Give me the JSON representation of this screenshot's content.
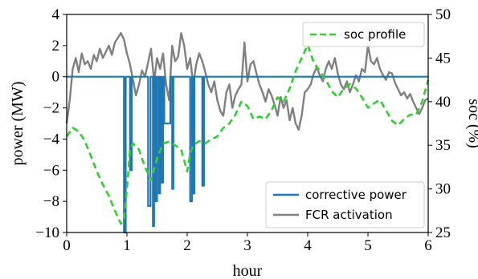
{
  "chart_data": {
    "type": "line",
    "xlabel": "hour",
    "ylabel": "power (MW)",
    "y2label": "soc (%)",
    "xlim": [
      0,
      6
    ],
    "ylim": [
      -10,
      4
    ],
    "y2lim": [
      25,
      50
    ],
    "xticks": [
      "0",
      "1",
      "2",
      "3",
      "4",
      "5",
      "6"
    ],
    "yticks": [
      "−10",
      "−8",
      "−6",
      "−4",
      "−2",
      "0",
      "2",
      "4"
    ],
    "y2ticks": [
      "25",
      "30",
      "35",
      "40",
      "45",
      "50"
    ],
    "grid": false,
    "legends": [
      {
        "placement": "lower-right",
        "entries": [
          "corrective power",
          "FCR activation"
        ]
      },
      {
        "placement": "upper-right",
        "entries": [
          "soc profile"
        ]
      }
    ],
    "colors": {
      "corrective": "#1f77b4",
      "fcr": "#808080",
      "soc": "#32cd32"
    },
    "series": [
      {
        "name": "FCR activation",
        "axis": "left",
        "x": [
          0.0,
          0.05,
          0.1,
          0.15,
          0.2,
          0.25,
          0.3,
          0.35,
          0.4,
          0.45,
          0.5,
          0.55,
          0.6,
          0.65,
          0.7,
          0.75,
          0.8,
          0.85,
          0.9,
          0.95,
          1.0,
          1.05,
          1.1,
          1.15,
          1.2,
          1.25,
          1.3,
          1.35,
          1.4,
          1.45,
          1.5,
          1.55,
          1.6,
          1.65,
          1.7,
          1.75,
          1.8,
          1.85,
          1.9,
          1.95,
          2.0,
          2.05,
          2.1,
          2.15,
          2.2,
          2.25,
          2.3,
          2.35,
          2.4,
          2.45,
          2.5,
          2.55,
          2.6,
          2.65,
          2.7,
          2.75,
          2.8,
          2.85,
          2.9,
          2.95,
          3.0,
          3.05,
          3.1,
          3.15,
          3.2,
          3.25,
          3.3,
          3.35,
          3.4,
          3.45,
          3.5,
          3.55,
          3.6,
          3.65,
          3.7,
          3.75,
          3.8,
          3.85,
          3.9,
          3.95,
          4.0,
          4.05,
          4.1,
          4.15,
          4.2,
          4.25,
          4.3,
          4.35,
          4.4,
          4.45,
          4.5,
          4.55,
          4.6,
          4.65,
          4.7,
          4.75,
          4.8,
          4.85,
          4.9,
          4.95,
          5.0,
          5.05,
          5.1,
          5.15,
          5.2,
          5.25,
          5.3,
          5.35,
          5.4,
          5.45,
          5.5,
          5.55,
          5.6,
          5.65,
          5.7,
          5.75,
          5.8,
          5.85,
          5.9,
          5.95,
          6.0
        ],
        "values": [
          -3.0,
          -1.5,
          0.5,
          1.2,
          0.3,
          1.5,
          0.8,
          1.0,
          0.5,
          1.4,
          1.0,
          1.8,
          1.2,
          1.6,
          2.0,
          1.4,
          2.2,
          2.5,
          2.8,
          2.4,
          1.5,
          0.8,
          -0.2,
          -1.2,
          -0.5,
          0.4,
          0.0,
          0.9,
          1.8,
          -0.3,
          1.2,
          0.5,
          1.5,
          -0.5,
          -1.5,
          2.0,
          1.0,
          1.3,
          2.8,
          2.0,
          0.5,
          1.2,
          -0.5,
          0.8,
          1.5,
          1.0,
          0.3,
          -0.5,
          -1.0,
          -0.3,
          -1.5,
          -2.2,
          -2.5,
          -1.0,
          -0.5,
          -2.0,
          -1.2,
          -0.8,
          -0.5,
          2.2,
          -0.3,
          0.8,
          1.0,
          0.2,
          -0.5,
          -1.0,
          -1.6,
          -0.8,
          -1.2,
          -1.8,
          -2.5,
          -1.3,
          -2.0,
          -1.5,
          -2.8,
          -2.0,
          -3.0,
          -3.4,
          -2.5,
          -1.0,
          -0.8,
          -0.5,
          0.2,
          0.6,
          0.1,
          -0.3,
          0.5,
          1.0,
          0.5,
          1.2,
          0.2,
          -0.5,
          -0.8,
          -0.3,
          -1.0,
          -0.5,
          0.1,
          -0.3,
          0.5,
          0.3,
          2.0,
          1.0,
          0.8,
          1.2,
          0.5,
          0.1,
          -0.2,
          0.3,
          0.2,
          -0.4,
          -0.8,
          -1.2,
          -1.0,
          -1.4,
          -1.1,
          -1.6,
          -2.0,
          -2.4,
          -2.0,
          -1.5,
          -1.4
        ]
      },
      {
        "name": "corrective power",
        "axis": "left",
        "x": [
          0.0,
          0.95,
          0.95,
          0.98,
          0.98,
          1.05,
          1.05,
          1.08,
          1.08,
          1.35,
          1.35,
          1.39,
          1.39,
          1.43,
          1.43,
          1.45,
          1.45,
          1.48,
          1.48,
          1.5,
          1.5,
          1.53,
          1.53,
          1.55,
          1.55,
          1.57,
          1.57,
          1.6,
          1.6,
          1.62,
          1.62,
          1.72,
          1.72,
          1.75,
          1.75,
          1.77,
          1.77,
          2.05,
          2.05,
          2.08,
          2.08,
          2.1,
          2.1,
          2.12,
          2.12,
          2.25,
          2.25,
          2.28,
          2.28,
          6.0
        ],
        "values": [
          0.0,
          0.0,
          -10.0,
          -10.0,
          0.0,
          0.0,
          -6.0,
          -6.0,
          0.0,
          0.0,
          -8.3,
          -8.3,
          0.0,
          0.0,
          -9.6,
          -9.6,
          0.0,
          0.0,
          -8.0,
          -8.0,
          0.0,
          0.0,
          -7.5,
          -7.5,
          0.0,
          0.0,
          -6.8,
          -6.8,
          0.0,
          0.0,
          -3.0,
          -3.0,
          0.0,
          0.0,
          -7.2,
          -7.2,
          0.0,
          0.0,
          -8.0,
          -8.0,
          0.0,
          0.0,
          -7.5,
          -7.5,
          0.0,
          0.0,
          -7.0,
          -7.0,
          0.0,
          0.0
        ]
      },
      {
        "name": "soc profile",
        "axis": "right",
        "x": [
          0.0,
          0.1,
          0.2,
          0.3,
          0.4,
          0.5,
          0.6,
          0.7,
          0.8,
          0.9,
          0.95,
          1.0,
          1.05,
          1.1,
          1.2,
          1.3,
          1.4,
          1.5,
          1.6,
          1.7,
          1.8,
          1.9,
          2.0,
          2.05,
          2.1,
          2.2,
          2.3,
          2.4,
          2.5,
          2.6,
          2.7,
          2.8,
          2.9,
          3.0,
          3.1,
          3.2,
          3.3,
          3.4,
          3.5,
          3.6,
          3.7,
          3.8,
          3.9,
          4.0,
          4.1,
          4.2,
          4.3,
          4.4,
          4.5,
          4.6,
          4.7,
          4.8,
          4.9,
          5.0,
          5.1,
          5.2,
          5.3,
          5.4,
          5.5,
          5.6,
          5.7,
          5.8,
          5.9,
          6.0
        ],
        "values": [
          36.0,
          37.0,
          36.6,
          35.5,
          33.8,
          32.0,
          30.5,
          29.2,
          27.5,
          26.0,
          26.5,
          30.0,
          34.5,
          35.2,
          34.5,
          32.5,
          31.0,
          33.5,
          35.2,
          35.4,
          35.0,
          34.5,
          32.0,
          34.0,
          35.0,
          35.5,
          35.2,
          35.7,
          36.0,
          37.0,
          37.5,
          38.5,
          40.0,
          39.5,
          38.0,
          38.3,
          38.0,
          39.0,
          40.5,
          40.0,
          41.5,
          43.5,
          45.0,
          46.5,
          44.5,
          43.5,
          42.5,
          41.2,
          40.5,
          41.5,
          42.0,
          41.5,
          40.5,
          39.3,
          39.8,
          40.2,
          39.0,
          37.8,
          37.3,
          38.0,
          38.5,
          38.5,
          40.0,
          42.5
        ]
      }
    ]
  }
}
